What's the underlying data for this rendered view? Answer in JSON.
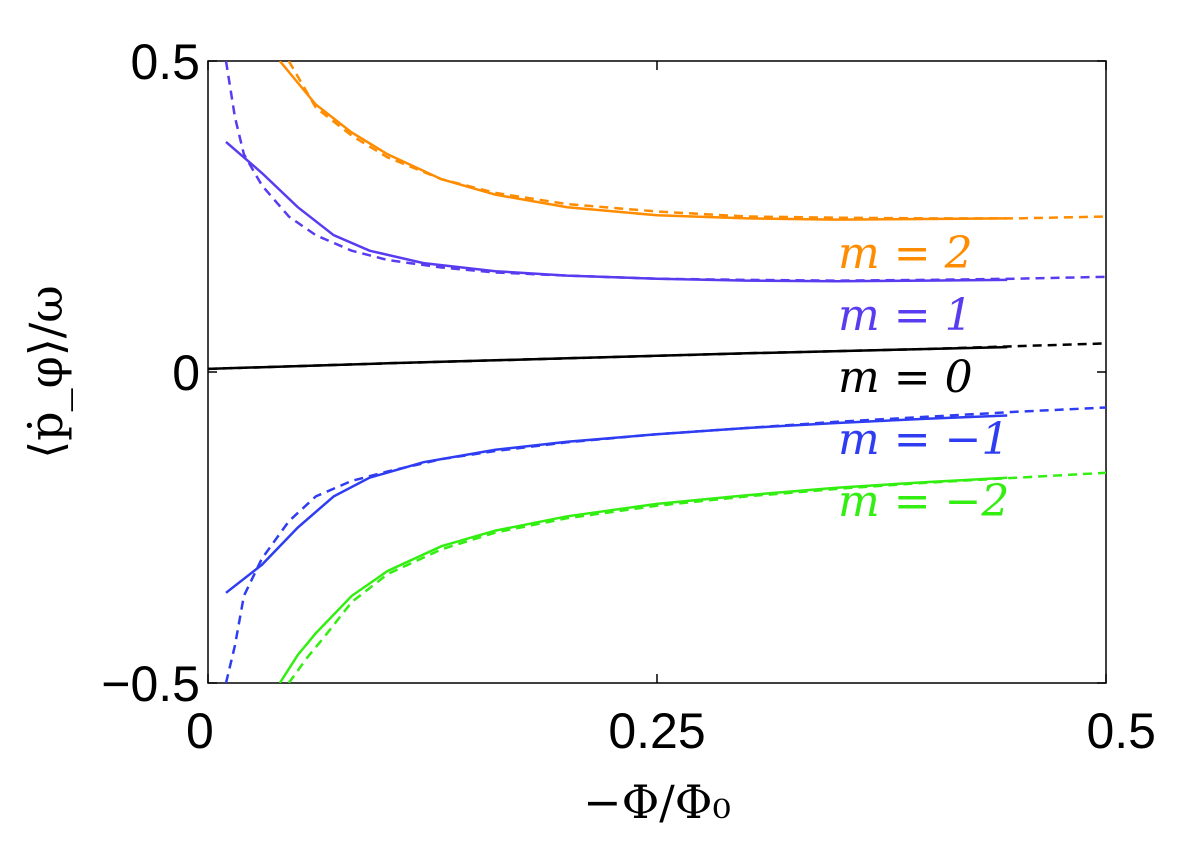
{
  "chart_data": {
    "type": "line",
    "xlabel": "−Φ/Φ₀",
    "ylabel": "⟨ṗ_φ⟩/ω",
    "xlim": [
      0,
      0.5
    ],
    "ylim": [
      -0.5,
      0.5
    ],
    "xticks": [
      {
        "value": 0,
        "label": "0"
      },
      {
        "value": 0.25,
        "label": "0.25"
      },
      {
        "value": 0.5,
        "label": "0.5"
      }
    ],
    "yticks": [
      {
        "value": -0.5,
        "label": "−0.5"
      },
      {
        "value": 0,
        "label": "0"
      },
      {
        "value": 0.5,
        "label": "0.5"
      }
    ],
    "grid": false,
    "series": [
      {
        "name": "m = 2",
        "color": "#ff8c00",
        "solid": {
          "x": [
            0.04,
            0.06,
            0.08,
            0.1,
            0.13,
            0.16,
            0.2,
            0.25,
            0.3,
            0.35,
            0.4,
            0.445
          ],
          "y": [
            0.5,
            0.43,
            0.385,
            0.35,
            0.31,
            0.285,
            0.265,
            0.252,
            0.247,
            0.245,
            0.246,
            0.247
          ]
        },
        "dashed": {
          "x": [
            0.045,
            0.06,
            0.08,
            0.1,
            0.13,
            0.16,
            0.2,
            0.25,
            0.3,
            0.35,
            0.4,
            0.45,
            0.5
          ],
          "y": [
            0.5,
            0.425,
            0.38,
            0.345,
            0.31,
            0.288,
            0.27,
            0.258,
            0.25,
            0.248,
            0.247,
            0.247,
            0.25
          ]
        }
      },
      {
        "name": "m = 1",
        "color": "#5a3cf0",
        "solid": {
          "x": [
            0.01,
            0.03,
            0.05,
            0.07,
            0.09,
            0.12,
            0.16,
            0.2,
            0.25,
            0.3,
            0.35,
            0.4,
            0.445
          ],
          "y": [
            0.37,
            0.32,
            0.265,
            0.22,
            0.195,
            0.175,
            0.162,
            0.155,
            0.15,
            0.147,
            0.146,
            0.147,
            0.148
          ]
        },
        "dashed": {
          "x": [
            0.01,
            0.015,
            0.02,
            0.03,
            0.045,
            0.06,
            0.08,
            0.1,
            0.13,
            0.16,
            0.2,
            0.25,
            0.3,
            0.35,
            0.4,
            0.45,
            0.5
          ],
          "y": [
            0.5,
            0.41,
            0.35,
            0.3,
            0.25,
            0.22,
            0.195,
            0.18,
            0.168,
            0.16,
            0.155,
            0.15,
            0.148,
            0.147,
            0.148,
            0.15,
            0.153
          ]
        }
      },
      {
        "name": "m = 0",
        "color": "#000000",
        "solid": {
          "x": [
            0,
            0.1,
            0.2,
            0.3,
            0.445
          ],
          "y": [
            0.005,
            0.014,
            0.022,
            0.03,
            0.04
          ]
        },
        "dashed": {
          "x": [
            0,
            0.1,
            0.2,
            0.3,
            0.4,
            0.5
          ],
          "y": [
            0.005,
            0.014,
            0.022,
            0.03,
            0.037,
            0.046
          ]
        }
      },
      {
        "name": "m = −1",
        "color": "#2f3df2",
        "solid": {
          "x": [
            0.01,
            0.03,
            0.05,
            0.07,
            0.09,
            0.12,
            0.16,
            0.2,
            0.25,
            0.3,
            0.35,
            0.4,
            0.445
          ],
          "y": [
            -0.355,
            -0.31,
            -0.25,
            -0.2,
            -0.17,
            -0.145,
            -0.125,
            -0.112,
            -0.1,
            -0.09,
            -0.082,
            -0.075,
            -0.07
          ]
        },
        "dashed": {
          "x": [
            0.01,
            0.015,
            0.02,
            0.03,
            0.045,
            0.06,
            0.08,
            0.1,
            0.13,
            0.16,
            0.2,
            0.25,
            0.3,
            0.35,
            0.4,
            0.45,
            0.5
          ],
          "y": [
            -0.5,
            -0.44,
            -0.36,
            -0.3,
            -0.24,
            -0.2,
            -0.175,
            -0.16,
            -0.14,
            -0.127,
            -0.113,
            -0.1,
            -0.09,
            -0.08,
            -0.072,
            -0.064,
            -0.057
          ]
        }
      },
      {
        "name": "m = −2",
        "color": "#33ee11",
        "solid": {
          "x": [
            0.04,
            0.05,
            0.06,
            0.08,
            0.1,
            0.13,
            0.16,
            0.2,
            0.25,
            0.3,
            0.35,
            0.4,
            0.445
          ],
          "y": [
            -0.5,
            -0.455,
            -0.42,
            -0.36,
            -0.32,
            -0.28,
            -0.255,
            -0.232,
            -0.212,
            -0.198,
            -0.186,
            -0.177,
            -0.17
          ]
        },
        "dashed": {
          "x": [
            0.045,
            0.055,
            0.065,
            0.08,
            0.1,
            0.13,
            0.16,
            0.2,
            0.25,
            0.3,
            0.35,
            0.4,
            0.45,
            0.5
          ],
          "y": [
            -0.5,
            -0.46,
            -0.425,
            -0.37,
            -0.325,
            -0.285,
            -0.258,
            -0.235,
            -0.215,
            -0.2,
            -0.188,
            -0.178,
            -0.17,
            -0.162
          ]
        }
      }
    ]
  }
}
